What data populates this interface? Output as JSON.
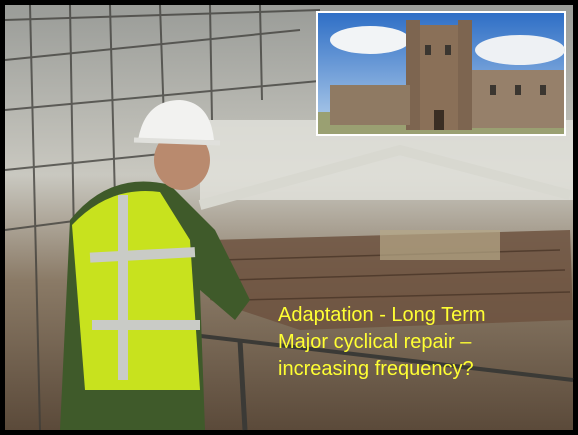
{
  "slide": {
    "caption": {
      "lines": [
        "Adaptation - Long Term",
        "Major cyclical repair –",
        "increasing frequency?"
      ]
    }
  }
}
